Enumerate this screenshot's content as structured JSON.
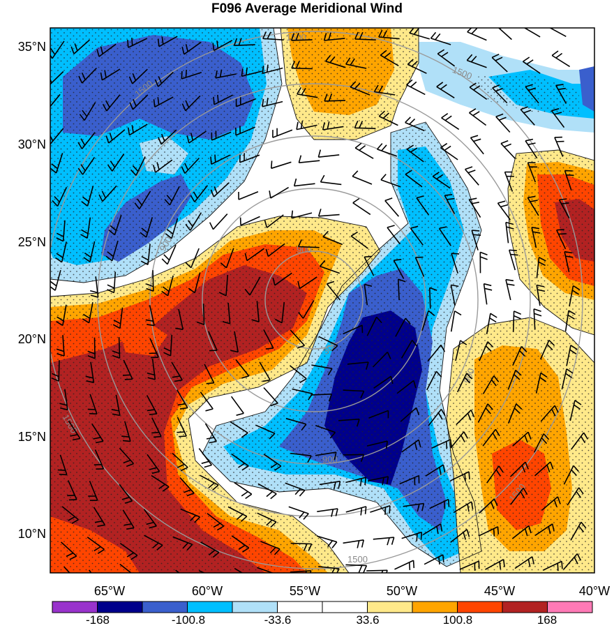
{
  "title": "F096 Average Meridional Wind",
  "lat_labels": [
    "35°N",
    "30°N",
    "25°N",
    "20°N",
    "15°N",
    "10°N"
  ],
  "lon_labels": [
    "65°W",
    "60°W",
    "55°W",
    "50°W",
    "45°W",
    "40°W"
  ],
  "colorbar": {
    "labels": [
      "-168",
      "-100.8",
      "-33.6",
      "33.6",
      "100.8",
      "168"
    ],
    "colors": [
      "#9933cc",
      "#00008b",
      "#3a5fcd",
      "#00bfff",
      "#b0e0f8",
      "#ffffff",
      "#ffffff",
      "#ffe98a",
      "#ffa500",
      "#ff4500",
      "#b22222",
      "#ff7ab6"
    ]
  },
  "radius_labels": [
    "1500",
    "1500",
    "900",
    "300",
    "900",
    "1500",
    "1500",
    "1500",
    "900",
    "900",
    "1500"
  ],
  "colors": {
    "strong_neg": "#00008b",
    "neg2": "#3a5fcd",
    "neg1": "#00bfff",
    "weak_neg": "#b0e0f8",
    "weak_pos": "#ffe98a",
    "pos1": "#ffa500",
    "pos2": "#ff4500",
    "strong_pos": "#b22222",
    "range_ring": "#9a9a9a"
  }
}
